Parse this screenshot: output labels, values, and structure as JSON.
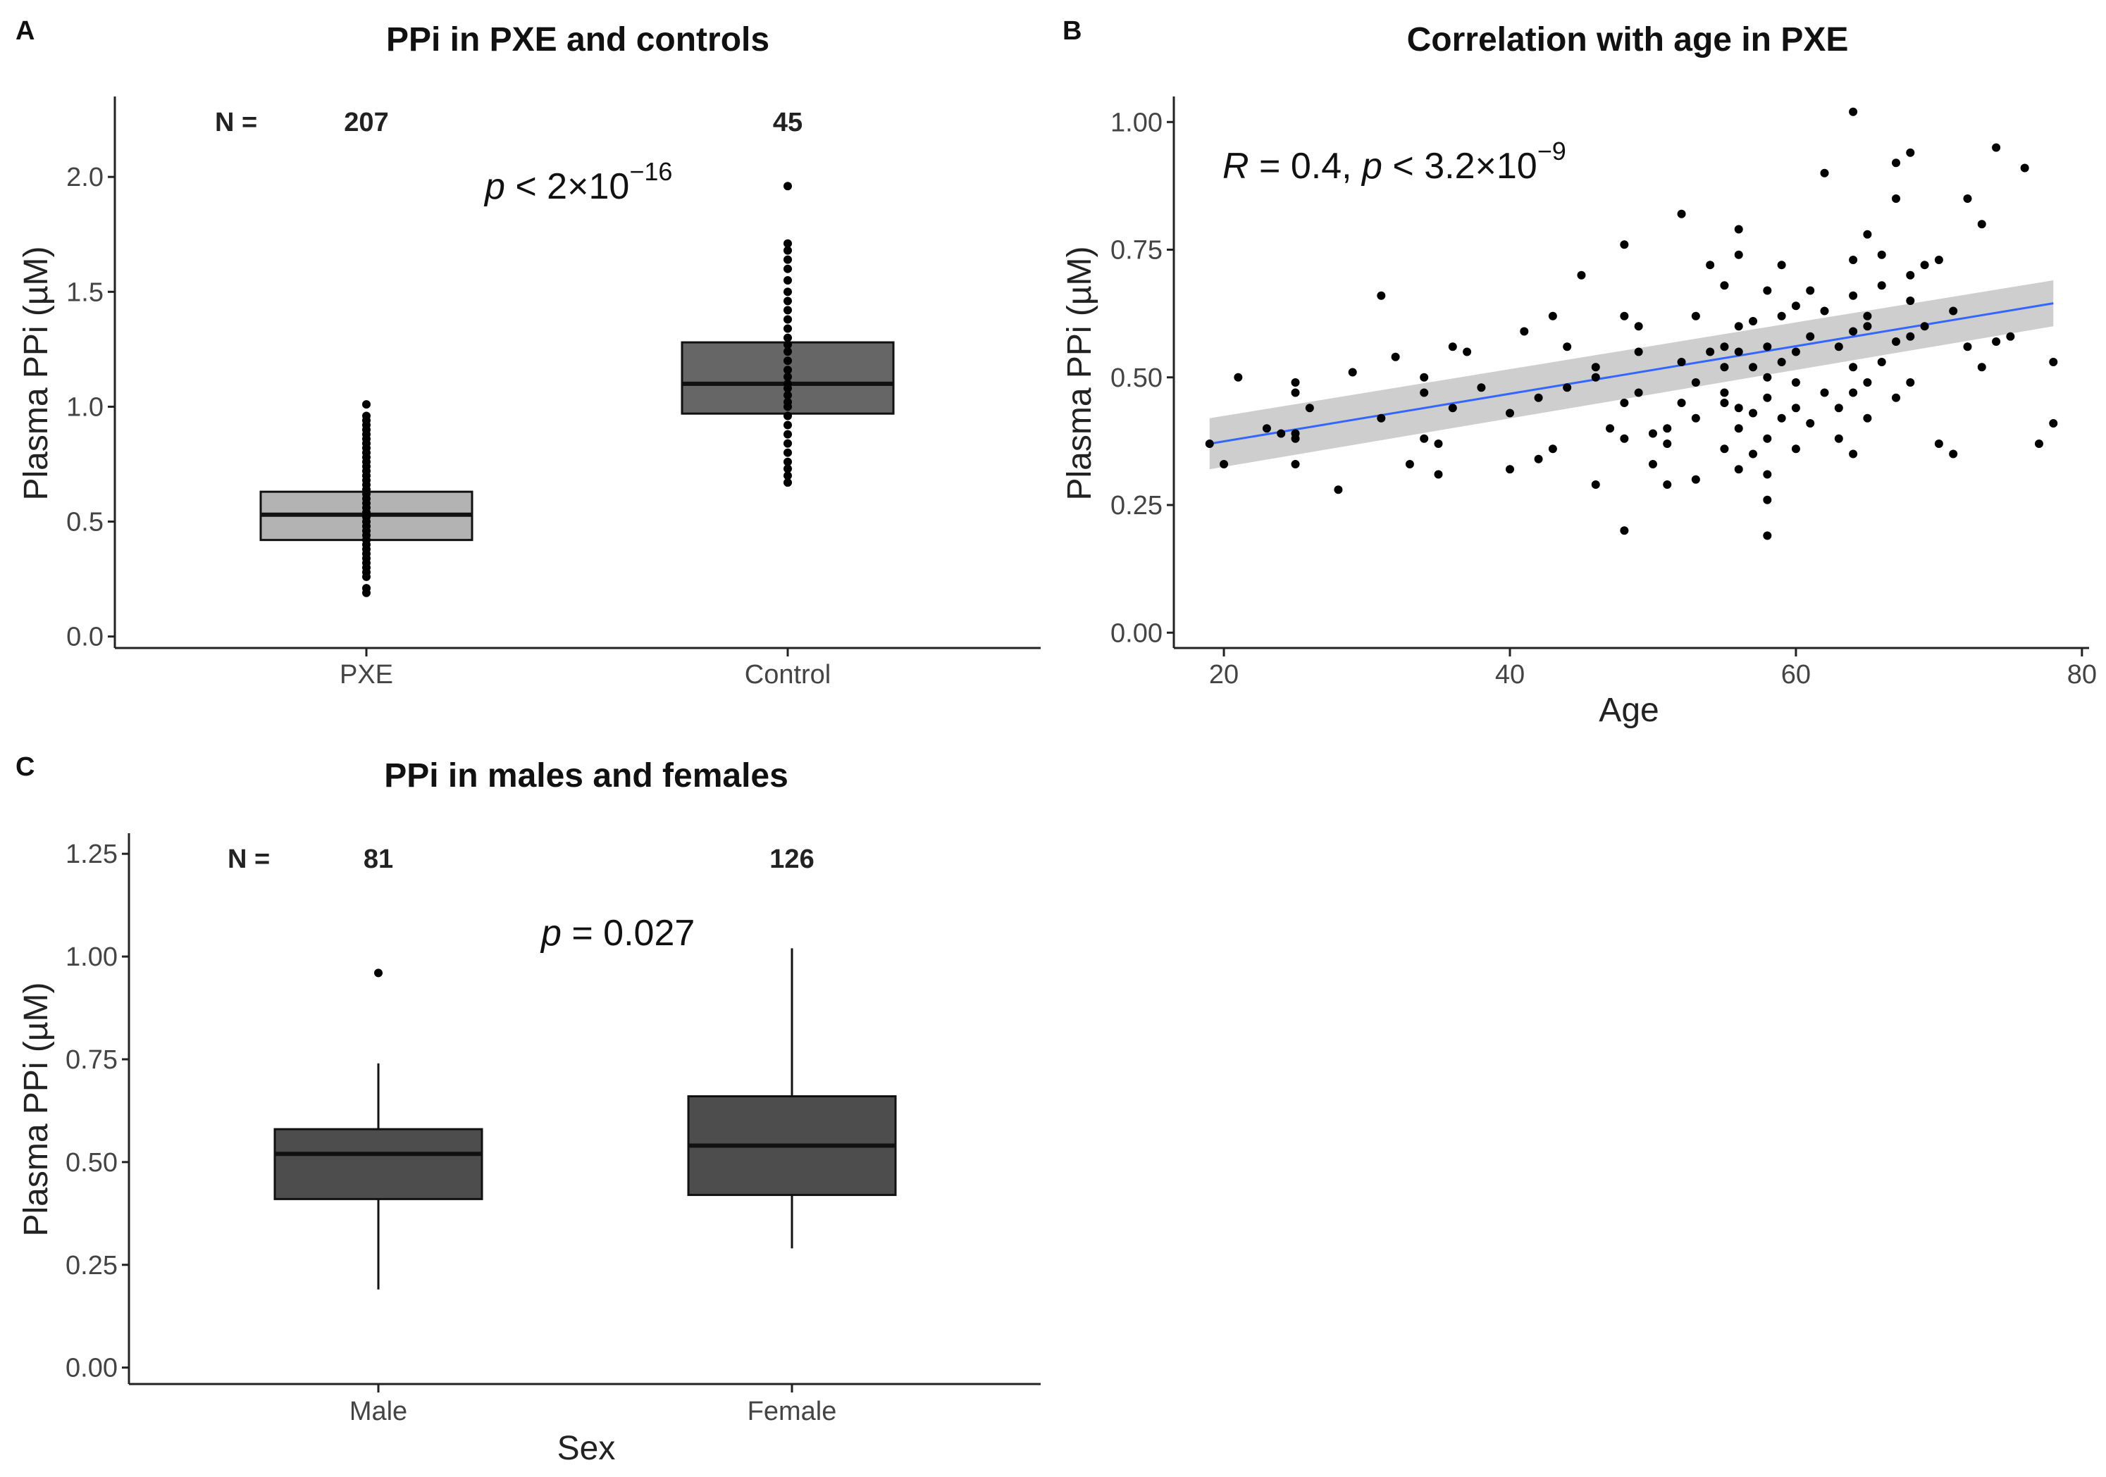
{
  "chart_data": [
    {
      "panel": "A",
      "type": "box",
      "title": "PPi in PXE and controls",
      "ylabel": "Plasma PPi (µM)",
      "xlabel": "",
      "ylim": [
        -0.05,
        2.35
      ],
      "yticks": [
        "0.0",
        "0.5",
        "1.0",
        "1.5",
        "2.0"
      ],
      "yticks_values": [
        0,
        0.5,
        1.0,
        1.5,
        2.0
      ],
      "n_label": "N =",
      "stat_annotation": {
        "var": "p",
        "text": " < 2×10",
        "sup": "−16"
      },
      "groups": [
        {
          "name": "PXE",
          "n": "207",
          "q1": 0.42,
          "median": 0.53,
          "q3": 0.63,
          "fill": "#b3b3b3",
          "points": [
            0.19,
            0.21,
            0.26,
            0.28,
            0.3,
            0.32,
            0.34,
            0.36,
            0.38,
            0.4,
            0.42,
            0.44,
            0.46,
            0.48,
            0.5,
            0.52,
            0.54,
            0.56,
            0.58,
            0.6,
            0.62,
            0.64,
            0.66,
            0.68,
            0.7,
            0.72,
            0.74,
            0.76,
            0.78,
            0.8,
            0.82,
            0.84,
            0.86,
            0.88,
            0.9,
            0.92,
            0.94,
            0.96,
            1.01
          ]
        },
        {
          "name": "Control",
          "n": "45",
          "q1": 0.97,
          "median": 1.1,
          "q3": 1.28,
          "fill": "#666666",
          "points": [
            0.67,
            0.7,
            0.73,
            0.76,
            0.8,
            0.84,
            0.88,
            0.92,
            0.96,
            1.0,
            1.02,
            1.05,
            1.08,
            1.1,
            1.13,
            1.16,
            1.2,
            1.24,
            1.27,
            1.3,
            1.34,
            1.38,
            1.42,
            1.46,
            1.5,
            1.55,
            1.6,
            1.64,
            1.68,
            1.71,
            1.96
          ]
        }
      ]
    },
    {
      "panel": "B",
      "type": "scatter",
      "title": "Correlation with age in PXE",
      "xlabel": "Age",
      "ylabel": "Plasma PPi (µM)",
      "xlim": [
        16.5,
        80.5
      ],
      "ylim": [
        -0.03,
        1.05
      ],
      "xticks": [
        "20",
        "40",
        "60",
        "80"
      ],
      "xticks_values": [
        20,
        40,
        60,
        80
      ],
      "yticks": [
        "0.00",
        "0.25",
        "0.50",
        "0.75",
        "1.00"
      ],
      "yticks_values": [
        0,
        0.25,
        0.5,
        0.75,
        1.0
      ],
      "stat_annotation": {
        "r_var": "R",
        "r_text": " = 0.4, ",
        "p_var": "p",
        "p_text": " < 3.2×10",
        "sup": "−9"
      },
      "fit_line": {
        "x": [
          19,
          78
        ],
        "y": [
          0.37,
          0.645
        ],
        "color": "#3366ff",
        "band_lower": [
          0.32,
          0.6
        ],
        "band_upper": [
          0.42,
          0.69
        ]
      },
      "points": [
        [
          19,
          0.37
        ],
        [
          20,
          0.33
        ],
        [
          21,
          0.5
        ],
        [
          23,
          0.4
        ],
        [
          24,
          0.39
        ],
        [
          25,
          0.49
        ],
        [
          25,
          0.47
        ],
        [
          25,
          0.39
        ],
        [
          25,
          0.38
        ],
        [
          25,
          0.33
        ],
        [
          26,
          0.44
        ],
        [
          28,
          0.28
        ],
        [
          29,
          0.51
        ],
        [
          31,
          0.42
        ],
        [
          31,
          0.66
        ],
        [
          32,
          0.54
        ],
        [
          33,
          0.33
        ],
        [
          34,
          0.47
        ],
        [
          34,
          0.5
        ],
        [
          34,
          0.38
        ],
        [
          35,
          0.31
        ],
        [
          35,
          0.37
        ],
        [
          36,
          0.44
        ],
        [
          36,
          0.56
        ],
        [
          37,
          0.55
        ],
        [
          38,
          0.48
        ],
        [
          40,
          0.32
        ],
        [
          40,
          0.43
        ],
        [
          41,
          0.59
        ],
        [
          42,
          0.46
        ],
        [
          42,
          0.34
        ],
        [
          43,
          0.36
        ],
        [
          43,
          0.62
        ],
        [
          44,
          0.48
        ],
        [
          44,
          0.56
        ],
        [
          45,
          0.7
        ],
        [
          46,
          0.29
        ],
        [
          46,
          0.52
        ],
        [
          46,
          0.5
        ],
        [
          47,
          0.4
        ],
        [
          48,
          0.45
        ],
        [
          48,
          0.62
        ],
        [
          48,
          0.2
        ],
        [
          48,
          0.76
        ],
        [
          48,
          0.38
        ],
        [
          49,
          0.55
        ],
        [
          49,
          0.6
        ],
        [
          49,
          0.47
        ],
        [
          50,
          0.33
        ],
        [
          50,
          0.39
        ],
        [
          51,
          0.4
        ],
        [
          51,
          0.29
        ],
        [
          51,
          0.37
        ],
        [
          52,
          0.53
        ],
        [
          52,
          0.45
        ],
        [
          52,
          0.82
        ],
        [
          53,
          0.42
        ],
        [
          53,
          0.49
        ],
        [
          53,
          0.62
        ],
        [
          53,
          0.3
        ],
        [
          54,
          0.55
        ],
        [
          54,
          0.72
        ],
        [
          55,
          0.45
        ],
        [
          55,
          0.36
        ],
        [
          55,
          0.52
        ],
        [
          55,
          0.56
        ],
        [
          55,
          0.47
        ],
        [
          55,
          0.68
        ],
        [
          56,
          0.44
        ],
        [
          56,
          0.55
        ],
        [
          56,
          0.6
        ],
        [
          56,
          0.74
        ],
        [
          56,
          0.79
        ],
        [
          56,
          0.32
        ],
        [
          56,
          0.4
        ],
        [
          57,
          0.43
        ],
        [
          57,
          0.52
        ],
        [
          57,
          0.61
        ],
        [
          57,
          0.35
        ],
        [
          58,
          0.5
        ],
        [
          58,
          0.56
        ],
        [
          58,
          0.46
        ],
        [
          58,
          0.38
        ],
        [
          58,
          0.31
        ],
        [
          58,
          0.26
        ],
        [
          58,
          0.19
        ],
        [
          58,
          0.67
        ],
        [
          59,
          0.42
        ],
        [
          59,
          0.53
        ],
        [
          59,
          0.62
        ],
        [
          59,
          0.72
        ],
        [
          60,
          0.36
        ],
        [
          60,
          0.44
        ],
        [
          60,
          0.55
        ],
        [
          60,
          0.64
        ],
        [
          60,
          0.49
        ],
        [
          61,
          0.41
        ],
        [
          61,
          0.58
        ],
        [
          61,
          0.67
        ],
        [
          62,
          0.47
        ],
        [
          62,
          0.63
        ],
        [
          62,
          0.9
        ],
        [
          63,
          0.56
        ],
        [
          63,
          0.44
        ],
        [
          63,
          0.38
        ],
        [
          64,
          0.59
        ],
        [
          64,
          0.52
        ],
        [
          64,
          0.66
        ],
        [
          64,
          0.73
        ],
        [
          64,
          0.35
        ],
        [
          64,
          0.47
        ],
        [
          64,
          1.02
        ],
        [
          65,
          0.6
        ],
        [
          65,
          0.78
        ],
        [
          65,
          0.62
        ],
        [
          65,
          0.49
        ],
        [
          65,
          0.42
        ],
        [
          66,
          0.53
        ],
        [
          66,
          0.68
        ],
        [
          66,
          0.74
        ],
        [
          67,
          0.46
        ],
        [
          67,
          0.57
        ],
        [
          67,
          0.85
        ],
        [
          67,
          0.92
        ],
        [
          68,
          0.94
        ],
        [
          68,
          0.49
        ],
        [
          68,
          0.58
        ],
        [
          68,
          0.65
        ],
        [
          68,
          0.7
        ],
        [
          69,
          0.6
        ],
        [
          69,
          0.72
        ],
        [
          70,
          0.37
        ],
        [
          70,
          0.73
        ],
        [
          71,
          0.35
        ],
        [
          71,
          0.63
        ],
        [
          72,
          0.56
        ],
        [
          72,
          0.85
        ],
        [
          73,
          0.52
        ],
        [
          73,
          0.8
        ],
        [
          74,
          0.95
        ],
        [
          74,
          0.57
        ],
        [
          75,
          0.58
        ],
        [
          76,
          0.91
        ],
        [
          77,
          0.37
        ],
        [
          78,
          0.53
        ],
        [
          78,
          0.41
        ]
      ]
    },
    {
      "panel": "C",
      "type": "box",
      "title": "PPi in males and females",
      "xlabel": "Sex",
      "ylabel": "Plasma PPi (µM)",
      "ylim": [
        -0.04,
        1.3
      ],
      "yticks": [
        "0.00",
        "0.25",
        "0.50",
        "0.75",
        "1.00",
        "1.25"
      ],
      "yticks_values": [
        0,
        0.25,
        0.5,
        0.75,
        1.0,
        1.25
      ],
      "n_label": "N =",
      "stat_annotation": {
        "var": "p",
        "text": " = 0.027"
      },
      "groups": [
        {
          "name": "Male",
          "n": "81",
          "q1": 0.41,
          "median": 0.52,
          "q3": 0.58,
          "whisker_low": 0.19,
          "whisker_high": 0.74,
          "fill": "#4d4d4d",
          "outliers": [
            0.96
          ]
        },
        {
          "name": "Female",
          "n": "126",
          "q1": 0.42,
          "median": 0.54,
          "q3": 0.66,
          "whisker_low": 0.29,
          "whisker_high": 1.02,
          "fill": "#4d4d4d",
          "outliers": []
        }
      ]
    }
  ],
  "panel_labels": [
    "A",
    "B",
    "C"
  ]
}
